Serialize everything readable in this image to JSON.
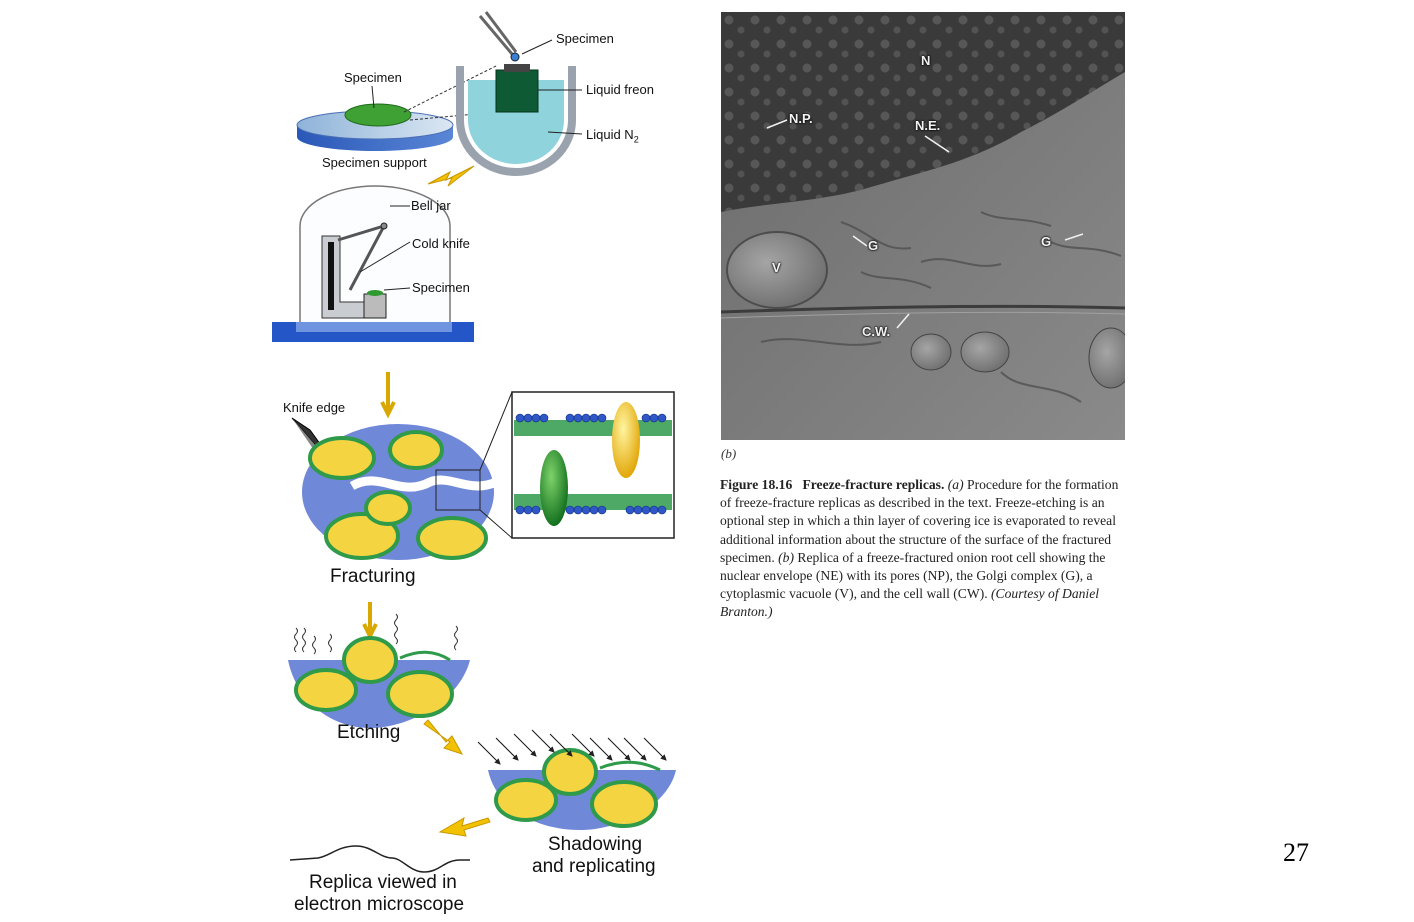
{
  "panel_a": {
    "specimen_top": "Specimen",
    "specimen_left": "Specimen",
    "liquid_freon": "Liquid freon",
    "liquid_n2": "Liquid N",
    "liquid_n2_sub": "2",
    "specimen_support": "Specimen support",
    "bell_jar": "Bell jar",
    "cold_knife": "Cold knife",
    "specimen_jar": "Specimen",
    "knife_edge": "Knife edge",
    "fracturing": "Fracturing",
    "etching": "Etching",
    "shadowing_line1": "Shadowing",
    "shadowing_line2": "and replicating",
    "replica_line1": "Replica viewed in",
    "replica_line2": "electron microscope"
  },
  "micrograph_labels": {
    "n": "N",
    "np": "N.P.",
    "ne": "N.E.",
    "g1": "G",
    "g2": "G",
    "v": "V",
    "cw": "C.W."
  },
  "caption": {
    "sub_b": "(b)",
    "figure_number": "Figure 18.16",
    "figure_title": "Freeze-fracture replicas.",
    "a_marker": "(a)",
    "text_a": "Procedure for the formation of freeze-fracture replicas as described in the text. Freeze-etching is an optional step in which a thin layer of covering ice is evaporated to reveal additional information about the structure of the surface of the fractured specimen.",
    "b_marker": "(b)",
    "text_b": "Replica of a freeze-fractured onion root cell showing the nuclear envelope (NE) with its pores (NP), the Golgi complex (G), a cytoplasmic vacuole (V), and the cell wall (CW).",
    "courtesy": "(Courtesy of Daniel Branton.)"
  },
  "page_number": "27",
  "colors": {
    "membrane_green": "#2e9a4a",
    "organelle_yellow": "#f5d442",
    "ice_blue": "#6f86d8",
    "arrow_yellow": "#f2c200",
    "nitrogen_blue": "#8fd3dc"
  }
}
